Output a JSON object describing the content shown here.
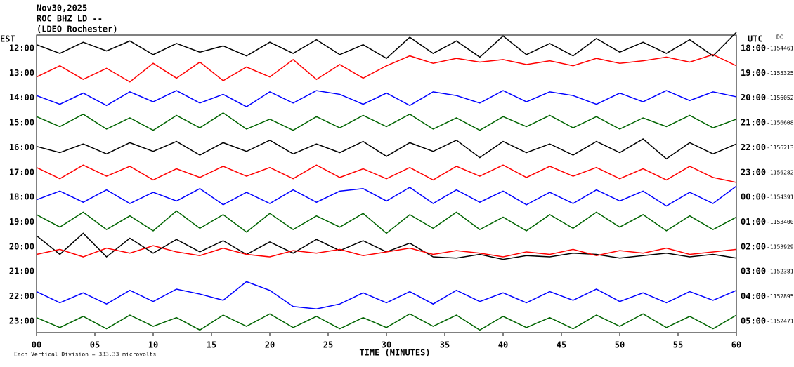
{
  "chart_data": {
    "type": "helicorder",
    "title_lines": [
      "Nov30,2025",
      "ROC BHZ LD --",
      "(LDEO Rochester)"
    ],
    "left_axis_label": "EST",
    "right_axis_label": "UTC",
    "dc_label": "DC",
    "xlabel": "TIME (MINUTES)",
    "footnote": "Each Vertical Division = 333.33 microvolts",
    "xlim": [
      0,
      60
    ],
    "xticks": [
      {
        "value": 0,
        "label": "00"
      },
      {
        "value": 5,
        "label": "05"
      },
      {
        "value": 10,
        "label": "10"
      },
      {
        "value": 15,
        "label": "15"
      },
      {
        "value": 20,
        "label": "20"
      },
      {
        "value": 25,
        "label": "25"
      },
      {
        "value": 30,
        "label": "30"
      },
      {
        "value": 35,
        "label": "35"
      },
      {
        "value": 40,
        "label": "40"
      },
      {
        "value": 45,
        "label": "45"
      },
      {
        "value": 50,
        "label": "50"
      },
      {
        "value": 55,
        "label": "55"
      },
      {
        "value": 60,
        "label": "60"
      }
    ],
    "x": [
      0,
      2,
      4,
      6,
      8,
      10,
      12,
      14,
      16,
      18,
      20,
      22,
      24,
      26,
      28,
      30,
      32,
      34,
      36,
      38,
      40,
      42,
      44,
      46,
      48,
      50,
      52,
      54,
      56,
      58,
      60
    ],
    "series": [
      {
        "est": "12:00",
        "utc": "18:00",
        "dc": -1154461,
        "color": "#000000",
        "values": [
          0.3,
          -0.4,
          0.5,
          -0.2,
          0.6,
          -0.5,
          0.4,
          -0.3,
          0.2,
          -0.6,
          0.5,
          -0.4,
          0.7,
          -0.5,
          0.3,
          -0.8,
          0.9,
          -0.4,
          0.6,
          -0.7,
          1.0,
          -0.5,
          0.4,
          -0.6,
          0.8,
          -0.3,
          0.5,
          -0.4,
          0.7,
          -0.6,
          1.3
        ]
      },
      {
        "est": "13:00",
        "utc": "19:00",
        "dc": -1155325,
        "color": "#ff0000",
        "values": [
          -0.3,
          0.6,
          -0.5,
          0.4,
          -0.7,
          0.8,
          -0.4,
          0.9,
          -0.6,
          0.5,
          -0.3,
          1.1,
          -0.5,
          0.7,
          -0.4,
          0.6,
          1.4,
          0.8,
          1.2,
          0.9,
          1.1,
          0.7,
          1.0,
          0.6,
          1.2,
          0.8,
          1.0,
          1.3,
          0.9,
          1.5,
          0.6
        ]
      },
      {
        "est": "14:00",
        "utc": "20:00",
        "dc": -1156052,
        "color": "#0000ff",
        "values": [
          0.2,
          -0.5,
          0.4,
          -0.6,
          0.5,
          -0.3,
          0.6,
          -0.4,
          0.3,
          -0.7,
          0.5,
          -0.4,
          0.6,
          0.3,
          -0.5,
          0.4,
          -0.6,
          0.5,
          0.2,
          -0.4,
          0.6,
          -0.3,
          0.5,
          0.2,
          -0.5,
          0.4,
          -0.3,
          0.6,
          -0.2,
          0.5,
          0.1
        ]
      },
      {
        "est": "15:00",
        "utc": "21:00",
        "dc": -1156608,
        "color": "#006400",
        "values": [
          0.5,
          -0.3,
          0.7,
          -0.5,
          0.4,
          -0.6,
          0.6,
          -0.4,
          0.8,
          -0.5,
          0.3,
          -0.6,
          0.5,
          -0.4,
          0.6,
          -0.3,
          0.7,
          -0.5,
          0.4,
          -0.6,
          0.5,
          -0.3,
          0.6,
          -0.4,
          0.5,
          -0.5,
          0.4,
          -0.3,
          0.6,
          -0.4,
          0.3
        ]
      },
      {
        "est": "16:00",
        "utc": "22:00",
        "dc": -1156213,
        "color": "#000000",
        "values": [
          0.1,
          -0.4,
          0.3,
          -0.5,
          0.4,
          -0.3,
          0.5,
          -0.6,
          0.4,
          -0.3,
          0.6,
          -0.5,
          0.3,
          -0.4,
          0.5,
          -0.7,
          0.4,
          -0.3,
          0.6,
          -0.8,
          0.5,
          -0.4,
          0.3,
          -0.6,
          0.5,
          -0.4,
          0.7,
          -0.9,
          0.4,
          -0.5,
          0.3
        ]
      },
      {
        "est": "17:00",
        "utc": "23:00",
        "dc": -1156282,
        "color": "#ff0000",
        "values": [
          0.4,
          -0.5,
          0.6,
          -0.3,
          0.5,
          -0.6,
          0.3,
          -0.4,
          0.5,
          -0.3,
          0.4,
          -0.5,
          0.6,
          -0.4,
          0.3,
          -0.5,
          0.4,
          -0.6,
          0.5,
          -0.3,
          0.6,
          -0.4,
          0.5,
          -0.3,
          0.4,
          -0.5,
          0.3,
          -0.6,
          0.5,
          -0.4,
          -0.8
        ]
      },
      {
        "est": "18:00",
        "utc": "00:00",
        "dc": -1154391,
        "color": "#0000ff",
        "values": [
          -0.2,
          0.5,
          -0.4,
          0.6,
          -0.5,
          0.4,
          -0.3,
          0.7,
          -0.6,
          0.4,
          -0.5,
          0.6,
          -0.4,
          0.5,
          0.7,
          -0.3,
          0.8,
          -0.5,
          0.6,
          -0.4,
          0.5,
          -0.6,
          0.4,
          -0.5,
          0.6,
          -0.3,
          0.5,
          -0.7,
          0.4,
          -0.5,
          0.9
        ]
      },
      {
        "est": "19:00",
        "utc": "01:00",
        "dc": -1153400,
        "color": "#006400",
        "values": [
          0.6,
          -0.4,
          0.8,
          -0.6,
          0.5,
          -0.7,
          0.9,
          -0.5,
          0.6,
          -0.8,
          0.7,
          -0.6,
          0.5,
          -0.4,
          0.7,
          -0.9,
          0.6,
          -0.5,
          0.8,
          -0.6,
          0.4,
          -0.7,
          0.6,
          -0.5,
          0.8,
          -0.4,
          0.6,
          -0.7,
          0.5,
          -0.6,
          0.4
        ]
      },
      {
        "est": "20:00",
        "utc": "02:00",
        "dc": -1153929,
        "color": "#000000",
        "values": [
          0.9,
          -0.6,
          1.1,
          -0.8,
          0.7,
          -0.5,
          0.6,
          -0.4,
          0.5,
          -0.6,
          0.4,
          -0.5,
          0.6,
          -0.3,
          0.5,
          -0.4,
          0.3,
          -0.8,
          -0.9,
          -0.6,
          -1.0,
          -0.7,
          -0.8,
          -0.5,
          -0.6,
          -0.9,
          -0.7,
          -0.5,
          -0.8,
          -0.6,
          -0.9
        ]
      },
      {
        "est": "21:00",
        "utc": "03:00",
        "dc": -1152381,
        "color": "#ff0000",
        "values": [
          1.4,
          1.8,
          1.2,
          1.9,
          1.5,
          2.1,
          1.6,
          1.3,
          1.9,
          1.4,
          1.2,
          1.7,
          1.5,
          1.8,
          1.3,
          1.6,
          1.9,
          1.4,
          1.7,
          1.5,
          1.2,
          1.6,
          1.4,
          1.8,
          1.3,
          1.7,
          1.5,
          1.9,
          1.4,
          1.6,
          1.8
        ]
      },
      {
        "est": "22:00",
        "utc": "04:00",
        "dc": -1152895,
        "color": "#0000ff",
        "values": [
          0.4,
          -0.5,
          0.3,
          -0.6,
          0.5,
          -0.4,
          0.6,
          0.2,
          -0.3,
          1.2,
          0.5,
          -0.8,
          -1.0,
          -0.6,
          0.3,
          -0.5,
          0.4,
          -0.6,
          0.5,
          -0.4,
          0.3,
          -0.5,
          0.4,
          -0.3,
          0.6,
          -0.4,
          0.3,
          -0.5,
          0.4,
          -0.3,
          0.5
        ]
      },
      {
        "est": "23:00",
        "utc": "05:00",
        "dc": -1152471,
        "color": "#006400",
        "values": [
          0.3,
          -0.5,
          0.4,
          -0.6,
          0.5,
          -0.4,
          0.3,
          -0.7,
          0.5,
          -0.4,
          0.6,
          -0.5,
          0.4,
          -0.6,
          0.3,
          -0.5,
          0.6,
          -0.4,
          0.5,
          -0.7,
          0.4,
          -0.5,
          0.3,
          -0.6,
          0.5,
          -0.4,
          0.6,
          -0.5,
          0.4,
          -0.6,
          0.5
        ]
      }
    ]
  }
}
